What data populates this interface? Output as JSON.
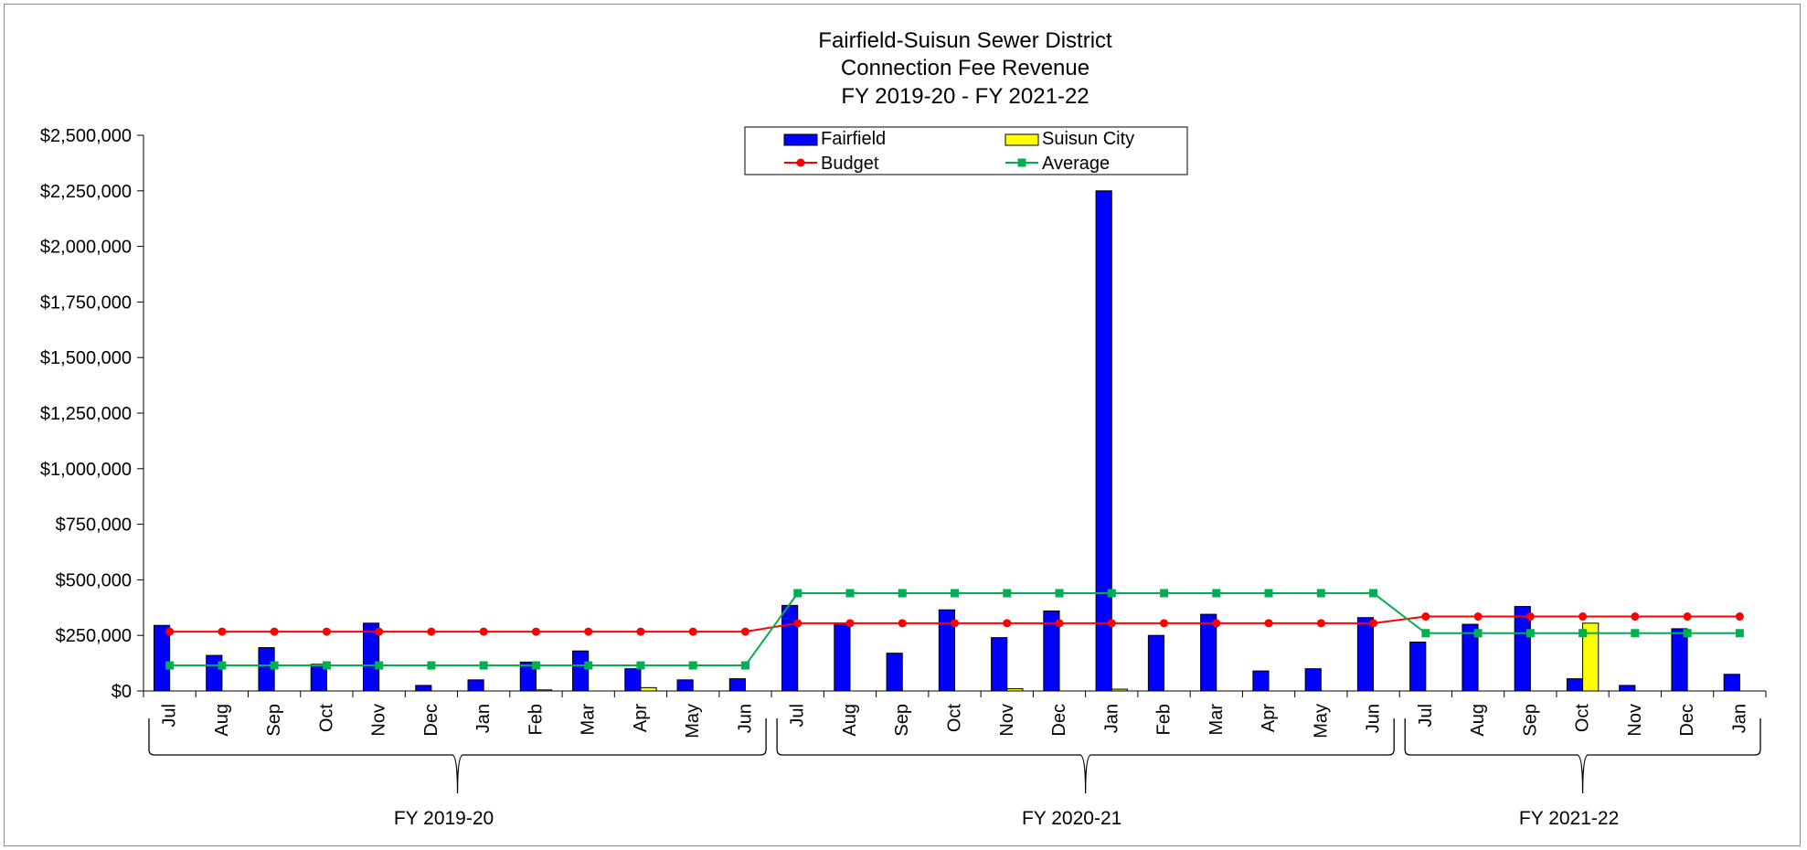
{
  "chart_data": {
    "type": "bar",
    "title": [
      "Fairfield-Suisun Sewer District",
      "Connection Fee Revenue",
      "FY 2019-20 - FY 2021-22"
    ],
    "categories": [
      "Jul",
      "Aug",
      "Sep",
      "Oct",
      "Nov",
      "Dec",
      "Jan",
      "Feb",
      "Mar",
      "Apr",
      "May",
      "Jun",
      "Jul",
      "Aug",
      "Sep",
      "Oct",
      "Nov",
      "Dec",
      "Jan",
      "Feb",
      "Mar",
      "Apr",
      "May",
      "Jun",
      "Jul",
      "Aug",
      "Sep",
      "Oct",
      "Nov",
      "Dec",
      "Jan"
    ],
    "groups": [
      {
        "label": "FY 2019-20",
        "start": 0,
        "end": 11
      },
      {
        "label": "FY 2020-21",
        "start": 12,
        "end": 23
      },
      {
        "label": "FY 2021-22",
        "start": 24,
        "end": 30
      }
    ],
    "series": [
      {
        "name": "Fairfield",
        "kind": "bar",
        "color": "#0000ff",
        "values": [
          295000,
          160000,
          195000,
          120000,
          305000,
          25000,
          50000,
          130000,
          180000,
          100000,
          50000,
          55000,
          385000,
          305000,
          170000,
          365000,
          240000,
          360000,
          2250000,
          250000,
          345000,
          90000,
          100000,
          330000,
          220000,
          300000,
          380000,
          55000,
          25000,
          280000,
          75000
        ]
      },
      {
        "name": "Suisun City",
        "kind": "bar",
        "color": "#ffff00",
        "values": [
          0,
          0,
          0,
          0,
          0,
          0,
          0,
          5000,
          0,
          15000,
          0,
          0,
          0,
          0,
          0,
          0,
          10000,
          0,
          8000,
          0,
          0,
          0,
          0,
          0,
          0,
          0,
          0,
          305000,
          0,
          0,
          0
        ]
      },
      {
        "name": "Budget",
        "kind": "line",
        "color": "#ff0000",
        "values": [
          267000,
          267000,
          267000,
          267000,
          267000,
          267000,
          267000,
          267000,
          267000,
          267000,
          267000,
          267000,
          305000,
          305000,
          305000,
          305000,
          305000,
          305000,
          305000,
          305000,
          305000,
          305000,
          305000,
          305000,
          335000,
          335000,
          335000,
          335000,
          335000,
          335000,
          335000
        ]
      },
      {
        "name": "Average",
        "kind": "line",
        "color": "#00b050",
        "values": [
          115000,
          115000,
          115000,
          115000,
          115000,
          115000,
          115000,
          115000,
          115000,
          115000,
          115000,
          115000,
          440000,
          440000,
          440000,
          440000,
          440000,
          440000,
          440000,
          440000,
          440000,
          440000,
          440000,
          440000,
          260000,
          260000,
          260000,
          260000,
          260000,
          260000,
          260000
        ]
      }
    ],
    "yticks": [
      "$0",
      "$250,000",
      "$500,000",
      "$750,000",
      "$1,000,000",
      "$1,250,000",
      "$1,500,000",
      "$1,750,000",
      "$2,000,000",
      "$2,250,000",
      "$2,500,000"
    ],
    "ylim": [
      0,
      2500000
    ],
    "grid": false,
    "legend_position": "top-center"
  }
}
